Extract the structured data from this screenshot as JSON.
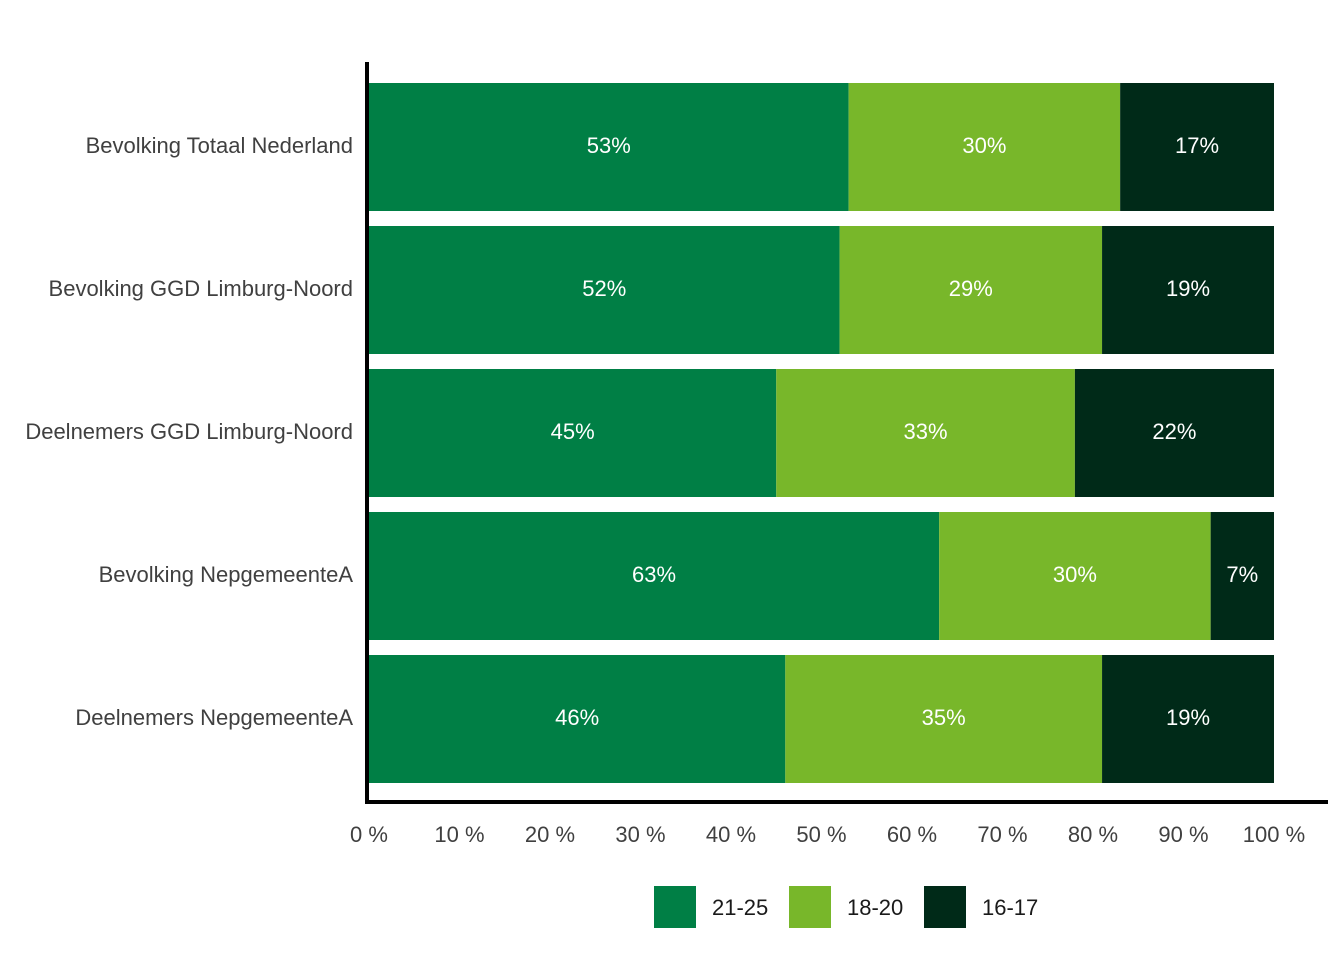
{
  "chart_data": {
    "type": "bar",
    "orientation": "horizontal",
    "stacked": true,
    "categories": [
      "Bevolking Totaal Nederland",
      "Bevolking GGD Limburg-Noord",
      "Deelnemers GGD Limburg-Noord",
      "Bevolking NepgemeenteA",
      "Deelnemers NepgemeenteA"
    ],
    "series": [
      {
        "name": "21-25",
        "color": "#007f45",
        "values": [
          53,
          52,
          45,
          63,
          46
        ],
        "labels": [
          "53%",
          "52%",
          "45%",
          "63%",
          "46%"
        ]
      },
      {
        "name": "18-20",
        "color": "#78b72a",
        "values": [
          30,
          29,
          33,
          30,
          35
        ],
        "labels": [
          "30%",
          "29%",
          "33%",
          "30%",
          "35%"
        ]
      },
      {
        "name": "16-17",
        "color": "#002a18",
        "values": [
          17,
          19,
          22,
          7,
          19
        ],
        "labels": [
          "17%",
          "19%",
          "22%",
          "7%",
          "19%"
        ]
      }
    ],
    "xlim": [
      0,
      100
    ],
    "x_ticks": [
      0,
      10,
      20,
      30,
      40,
      50,
      60,
      70,
      80,
      90,
      100
    ],
    "x_tick_labels": [
      "0 %",
      "10 %",
      "20 %",
      "30 %",
      "40 %",
      "50 %",
      "60 %",
      "70 %",
      "80 %",
      "90 %",
      "100 %"
    ],
    "grid": false,
    "legend_position": "bottom"
  }
}
